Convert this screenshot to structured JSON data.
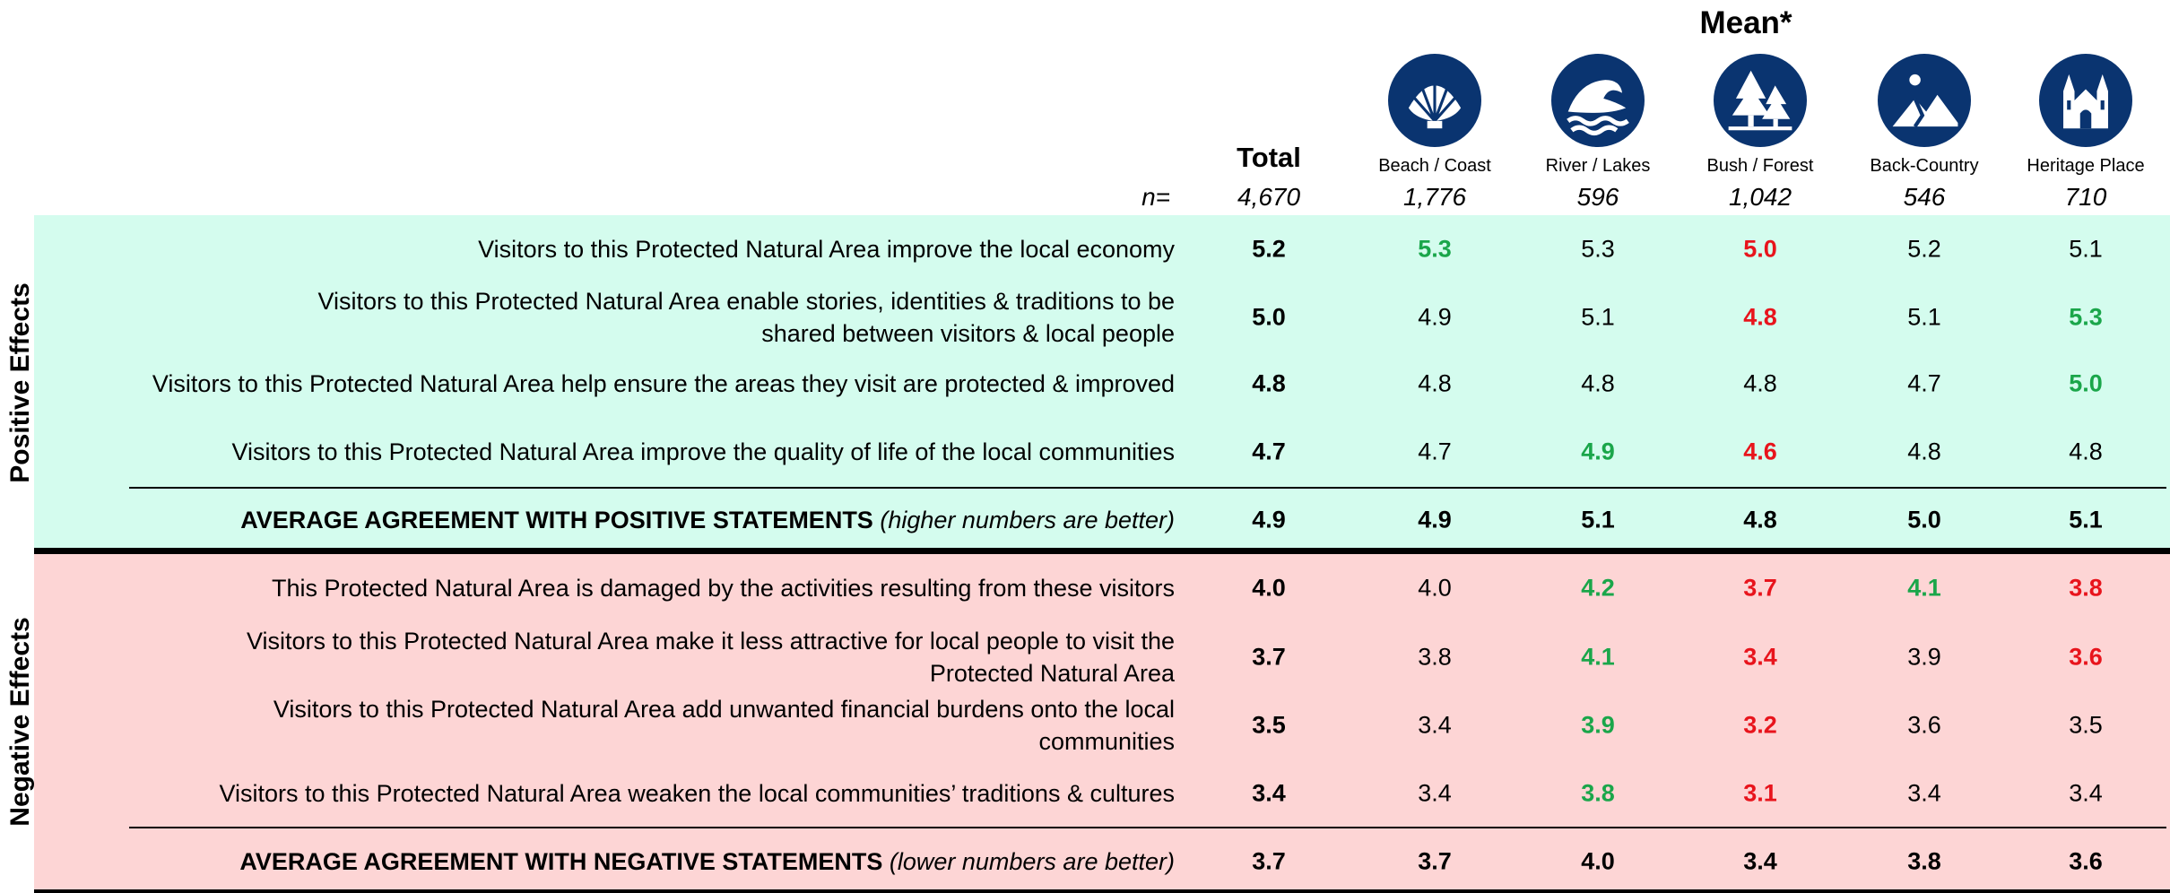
{
  "header": {
    "title": "Mean*",
    "n_label": "n="
  },
  "columns": [
    {
      "label": "Total",
      "n": "4,670"
    },
    {
      "label": "Beach / Coast",
      "n": "1,776"
    },
    {
      "label": "River / Lakes",
      "n": "596"
    },
    {
      "label": "Bush / Forest",
      "n": "1,042"
    },
    {
      "label": "Back-Country",
      "n": "546"
    },
    {
      "label": "Heritage Place",
      "n": "710"
    }
  ],
  "sections": [
    {
      "name": "Positive Effects",
      "background": "#d4fcee",
      "rows": [
        {
          "label": [
            "Visitors to this Protected Natural Area improve the local economy"
          ],
          "values": [
            "5.2",
            "5.3",
            "5.3",
            "5.0",
            "5.2",
            "5.1"
          ],
          "colors": [
            "#000000",
            "#1aa64a",
            "#000000",
            "#e8141c",
            "#000000",
            "#000000"
          ]
        },
        {
          "label": [
            "Visitors to this Protected Natural Area enable stories, identities & traditions to be",
            "shared between visitors & local people"
          ],
          "values": [
            "5.0",
            "4.9",
            "5.1",
            "4.8",
            "5.1",
            "5.3"
          ],
          "colors": [
            "#000000",
            "#000000",
            "#000000",
            "#e8141c",
            "#000000",
            "#1aa64a"
          ]
        },
        {
          "label": [
            "Visitors to this Protected Natural Area help ensure the areas they visit are protected & improved"
          ],
          "values": [
            "4.8",
            "4.8",
            "4.8",
            "4.8",
            "4.7",
            "5.0"
          ],
          "colors": [
            "#000000",
            "#000000",
            "#000000",
            "#000000",
            "#000000",
            "#1aa64a"
          ]
        },
        {
          "label": [
            "Visitors to this Protected Natural Area improve the quality of life of the local communities"
          ],
          "values": [
            "4.7",
            "4.7",
            "4.9",
            "4.6",
            "4.8",
            "4.8"
          ],
          "colors": [
            "#000000",
            "#000000",
            "#1aa64a",
            "#e8141c",
            "#000000",
            "#000000"
          ]
        }
      ],
      "average": {
        "label": "AVERAGE AGREEMENT WITH POSITIVE STATEMENTS",
        "note": "(higher numbers are better)",
        "values": [
          "4.9",
          "4.9",
          "5.1",
          "4.8",
          "5.0",
          "5.1"
        ]
      }
    },
    {
      "name": "Negative Effects",
      "background": "#fdd5d5",
      "rows": [
        {
          "label": [
            "This Protected Natural Area is damaged by the activities resulting from these visitors"
          ],
          "values": [
            "4.0",
            "4.0",
            "4.2",
            "3.7",
            "4.1",
            "3.8"
          ],
          "colors": [
            "#000000",
            "#000000",
            "#1aa64a",
            "#e8141c",
            "#1aa64a",
            "#e8141c"
          ]
        },
        {
          "label": [
            "Visitors to this Protected Natural Area make it less attractive for local people to visit the",
            "Protected Natural Area"
          ],
          "values": [
            "3.7",
            "3.8",
            "4.1",
            "3.4",
            "3.9",
            "3.6"
          ],
          "colors": [
            "#000000",
            "#000000",
            "#1aa64a",
            "#e8141c",
            "#000000",
            "#e8141c"
          ]
        },
        {
          "label": [
            "Visitors to this Protected Natural Area add unwanted financial burdens onto the local",
            "communities"
          ],
          "values": [
            "3.5",
            "3.4",
            "3.9",
            "3.2",
            "3.6",
            "3.5"
          ],
          "colors": [
            "#000000",
            "#000000",
            "#1aa64a",
            "#e8141c",
            "#000000",
            "#000000"
          ]
        },
        {
          "label": [
            "Visitors to this Protected Natural Area weaken the local communities’ traditions & cultures"
          ],
          "values": [
            "3.4",
            "3.4",
            "3.8",
            "3.1",
            "3.4",
            "3.4"
          ],
          "colors": [
            "#000000",
            "#000000",
            "#1aa64a",
            "#e8141c",
            "#000000",
            "#000000"
          ]
        }
      ],
      "average": {
        "label": "AVERAGE AGREEMENT WITH NEGATIVE STATEMENTS",
        "note": "(lower numbers are better)",
        "values": [
          "3.7",
          "3.7",
          "4.0",
          "3.4",
          "3.8",
          "3.6"
        ]
      }
    }
  ]
}
